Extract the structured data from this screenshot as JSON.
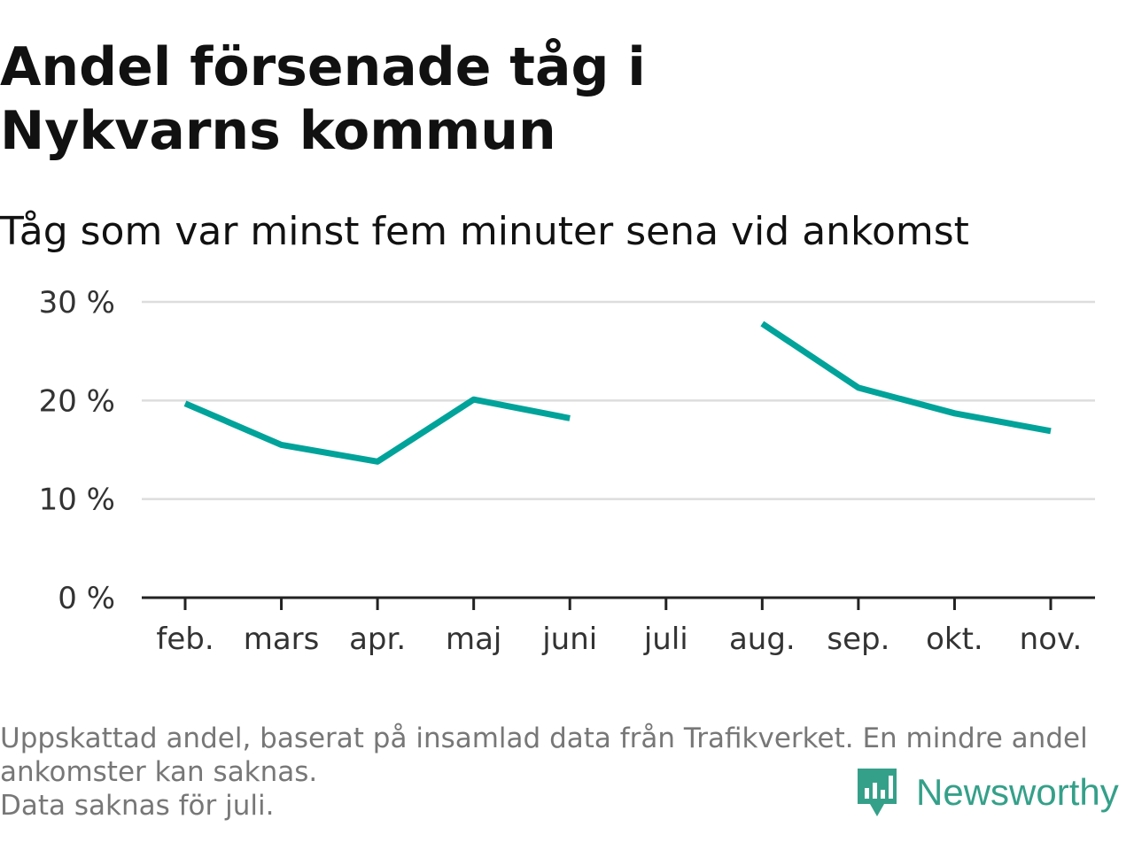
{
  "title": "Andel försenade tåg i Nykvarns kommun",
  "subtitle": "Tåg som var minst fem minuter sena vid ankomst",
  "footnote": {
    "line1": "Uppskattad andel, baserat på insamlad data från Trafikverket. En mindre andel",
    "line2": "ankomster kan saknas.",
    "line3": "Data saknas för juli."
  },
  "brand": {
    "name": "Newsworthy",
    "icon": "newsworthy-logo-icon",
    "color": "#35a089"
  },
  "chart_data": {
    "type": "line",
    "categories": [
      "feb.",
      "mars",
      "apr.",
      "maj",
      "juni",
      "juli",
      "aug.",
      "sep.",
      "okt.",
      "nov."
    ],
    "series": [
      {
        "values": [
          19.7,
          15.5,
          13.8,
          20.1,
          18.2,
          null,
          27.8,
          21.3,
          18.7,
          16.9
        ]
      }
    ],
    "ylim": [
      0,
      30
    ],
    "yticks": [
      0,
      10,
      20,
      30
    ],
    "ytick_labels": [
      "0 %",
      "10 %",
      "20 %",
      "30 %"
    ],
    "line_color": "#00a39a",
    "grid": true
  }
}
